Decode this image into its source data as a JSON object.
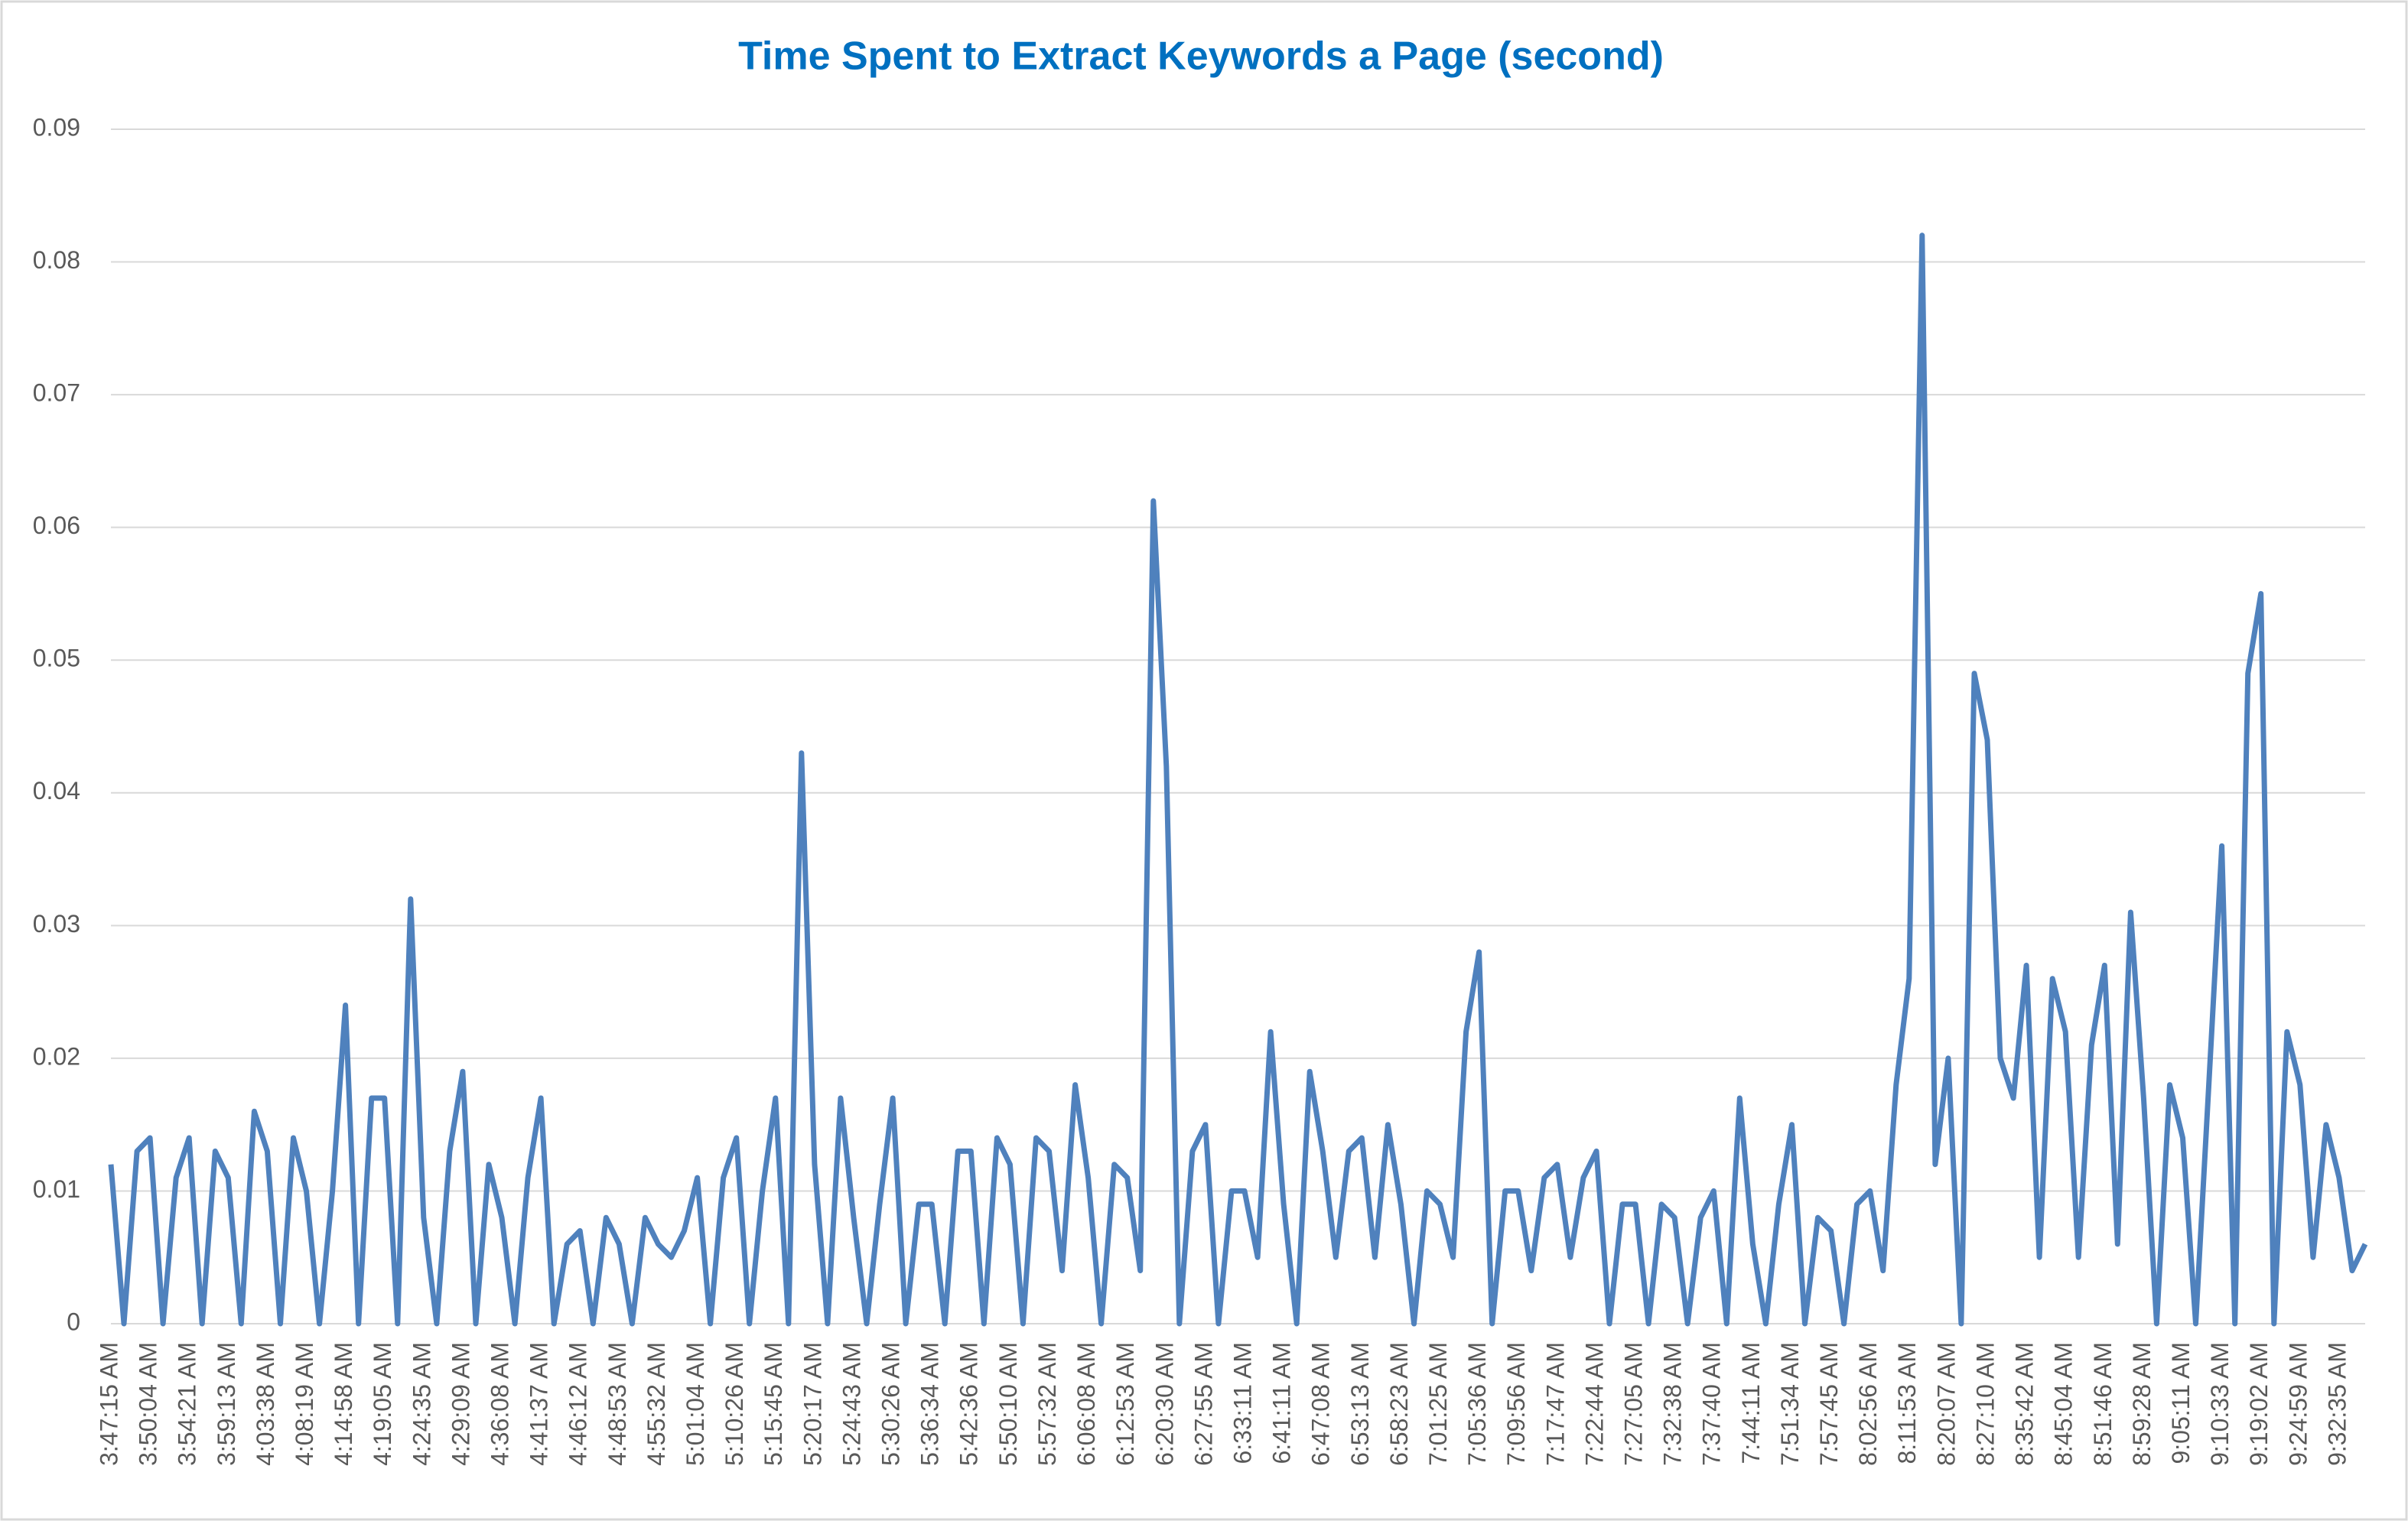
{
  "chart_data": {
    "type": "line",
    "title": "Time Spent to Extract Keywords a Page (second)",
    "categories": [
      "3:47:15 AM",
      null,
      null,
      "3:50:04 AM",
      null,
      null,
      "3:54:21 AM",
      null,
      null,
      "3:59:13 AM",
      null,
      null,
      "4:03:38 AM",
      null,
      null,
      "4:08:19 AM",
      null,
      null,
      "4:14:58 AM",
      null,
      null,
      "4:19:05 AM",
      null,
      null,
      "4:24:35 AM",
      null,
      null,
      "4:29:09 AM",
      null,
      null,
      "4:36:08 AM",
      null,
      null,
      "4:41:37 AM",
      null,
      null,
      "4:46:12 AM",
      null,
      null,
      "4:48:53 AM",
      null,
      null,
      "4:55:32 AM",
      null,
      null,
      "5:01:04 AM",
      null,
      null,
      "5:10:26 AM",
      null,
      null,
      "5:15:45 AM",
      null,
      null,
      "5:20:17 AM",
      null,
      null,
      "5:24:43 AM",
      null,
      null,
      "5:30:26 AM",
      null,
      null,
      "5:36:34 AM",
      null,
      null,
      "5:42:36 AM",
      null,
      null,
      "5:50:10 AM",
      null,
      null,
      "5:57:32 AM",
      null,
      null,
      "6:06:08 AM",
      null,
      null,
      "6:12:53 AM",
      null,
      null,
      "6:20:30 AM",
      null,
      null,
      "6:27:55 AM",
      null,
      null,
      "6:33:11 AM",
      null,
      null,
      "6:41:11 AM",
      null,
      null,
      "6:47:08 AM",
      null,
      null,
      "6:53:13 AM",
      null,
      null,
      "6:58:23 AM",
      null,
      null,
      "7:01:25 AM",
      null,
      null,
      "7:05:36 AM",
      null,
      null,
      "7:09:56 AM",
      null,
      null,
      "7:17:47 AM",
      null,
      null,
      "7:22:44 AM",
      null,
      null,
      "7:27:05 AM",
      null,
      null,
      "7:32:38 AM",
      null,
      null,
      "7:37:40 AM",
      null,
      null,
      "7:44:11 AM",
      null,
      null,
      "7:51:34 AM",
      null,
      null,
      "7:57:45 AM",
      null,
      null,
      "8:02:56 AM",
      null,
      null,
      "8:11:53 AM",
      null,
      null,
      "8:20:07 AM",
      null,
      null,
      "8:27:10 AM",
      null,
      null,
      "8:35:42 AM",
      null,
      null,
      "8:45:04 AM",
      null,
      null,
      "8:51:46 AM",
      null,
      null,
      "8:59:28 AM",
      null,
      null,
      "9:05:11 AM",
      null,
      null,
      "9:10:33 AM",
      null,
      null,
      "9:19:02 AM",
      null,
      null,
      "9:24:59 AM",
      null,
      null,
      "9:32:35 AM",
      null,
      null
    ],
    "values": [
      0.012,
      0,
      0.013,
      0.014,
      0,
      0.011,
      0.014,
      0,
      0.013,
      0.011,
      0,
      0.016,
      0.013,
      0,
      0.014,
      0.01,
      0,
      0.01,
      0.024,
      0,
      0.017,
      0.017,
      0,
      0.032,
      0.008,
      0,
      0.013,
      0.019,
      0,
      0.012,
      0.008,
      0,
      0.011,
      0.017,
      0,
      0.006,
      0.007,
      0,
      0.008,
      0.006,
      0,
      0.008,
      0.006,
      0.005,
      0.007,
      0.011,
      0,
      0.011,
      0.014,
      0,
      0.01,
      0.017,
      0,
      0.043,
      0.012,
      0,
      0.017,
      0.008,
      0,
      0.009,
      0.017,
      0,
      0.009,
      0.009,
      0,
      0.013,
      0.013,
      0,
      0.014,
      0.012,
      0,
      0.014,
      0.013,
      0.004,
      0.018,
      0.011,
      0,
      0.012,
      0.011,
      0.004,
      0.062,
      0.042,
      0,
      0.013,
      0.015,
      0,
      0.01,
      0.01,
      0.005,
      0.022,
      0.009,
      0,
      0.019,
      0.013,
      0.005,
      0.013,
      0.014,
      0.005,
      0.015,
      0.009,
      0,
      0.01,
      0.009,
      0.005,
      0.022,
      0.028,
      0,
      0.01,
      0.01,
      0.004,
      0.011,
      0.012,
      0.005,
      0.011,
      0.013,
      0,
      0.009,
      0.009,
      0,
      0.009,
      0.008,
      0,
      0.008,
      0.01,
      0,
      0.017,
      0.006,
      0,
      0.009,
      0.015,
      0,
      0.008,
      0.007,
      0,
      0.009,
      0.01,
      0.004,
      0.018,
      0.026,
      0.082,
      0.012,
      0.02,
      0,
      0.049,
      0.044,
      0.02,
      0.017,
      0.027,
      0.005,
      0.026,
      0.022,
      0.005,
      0.021,
      0.027,
      0.006,
      0.031,
      0.017,
      0,
      0.018,
      0.014,
      0,
      0.018,
      0.036,
      0,
      0.049,
      0.055,
      0,
      0.022,
      0.018,
      0.005,
      0.015,
      0.011,
      0.004,
      0.006
    ],
    "color": "#4f81bd",
    "ylim": [
      0,
      0.09
    ],
    "yticks": [
      0,
      0.01,
      0.02,
      0.03,
      0.04,
      0.05,
      0.06,
      0.07,
      0.08,
      0.09
    ],
    "grid": true
  }
}
